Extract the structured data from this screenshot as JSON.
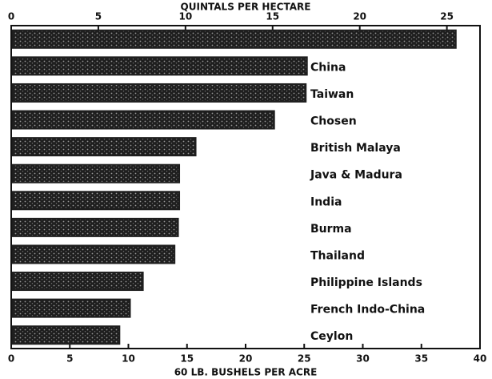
{
  "chart_data": {
    "type": "hbar",
    "x_label_top": "QUINTALS PER HECTARE",
    "x_label": "60 LB. BUSHELS PER ACRE",
    "categories": [
      null,
      "China",
      "Taiwan",
      "Chosen",
      "British Malaya",
      "Java & Madura",
      "India",
      "Burma",
      "Thailand",
      "Philippine Islands",
      "French Indo-China",
      "Ceylon"
    ],
    "values": [
      37.8,
      25.1,
      25.0,
      22.3,
      15.6,
      14.2,
      14.2,
      14.1,
      13.8,
      11.1,
      10.0,
      9.1
    ],
    "color": "#1e1e1e",
    "xlim": [
      0,
      40
    ],
    "xticks": [
      0,
      5,
      10,
      15,
      20,
      25,
      30,
      35,
      40
    ],
    "x2lim": [
      0,
      26.9
    ],
    "x2ticks": [
      0,
      5,
      10,
      15,
      20,
      25
    ]
  }
}
